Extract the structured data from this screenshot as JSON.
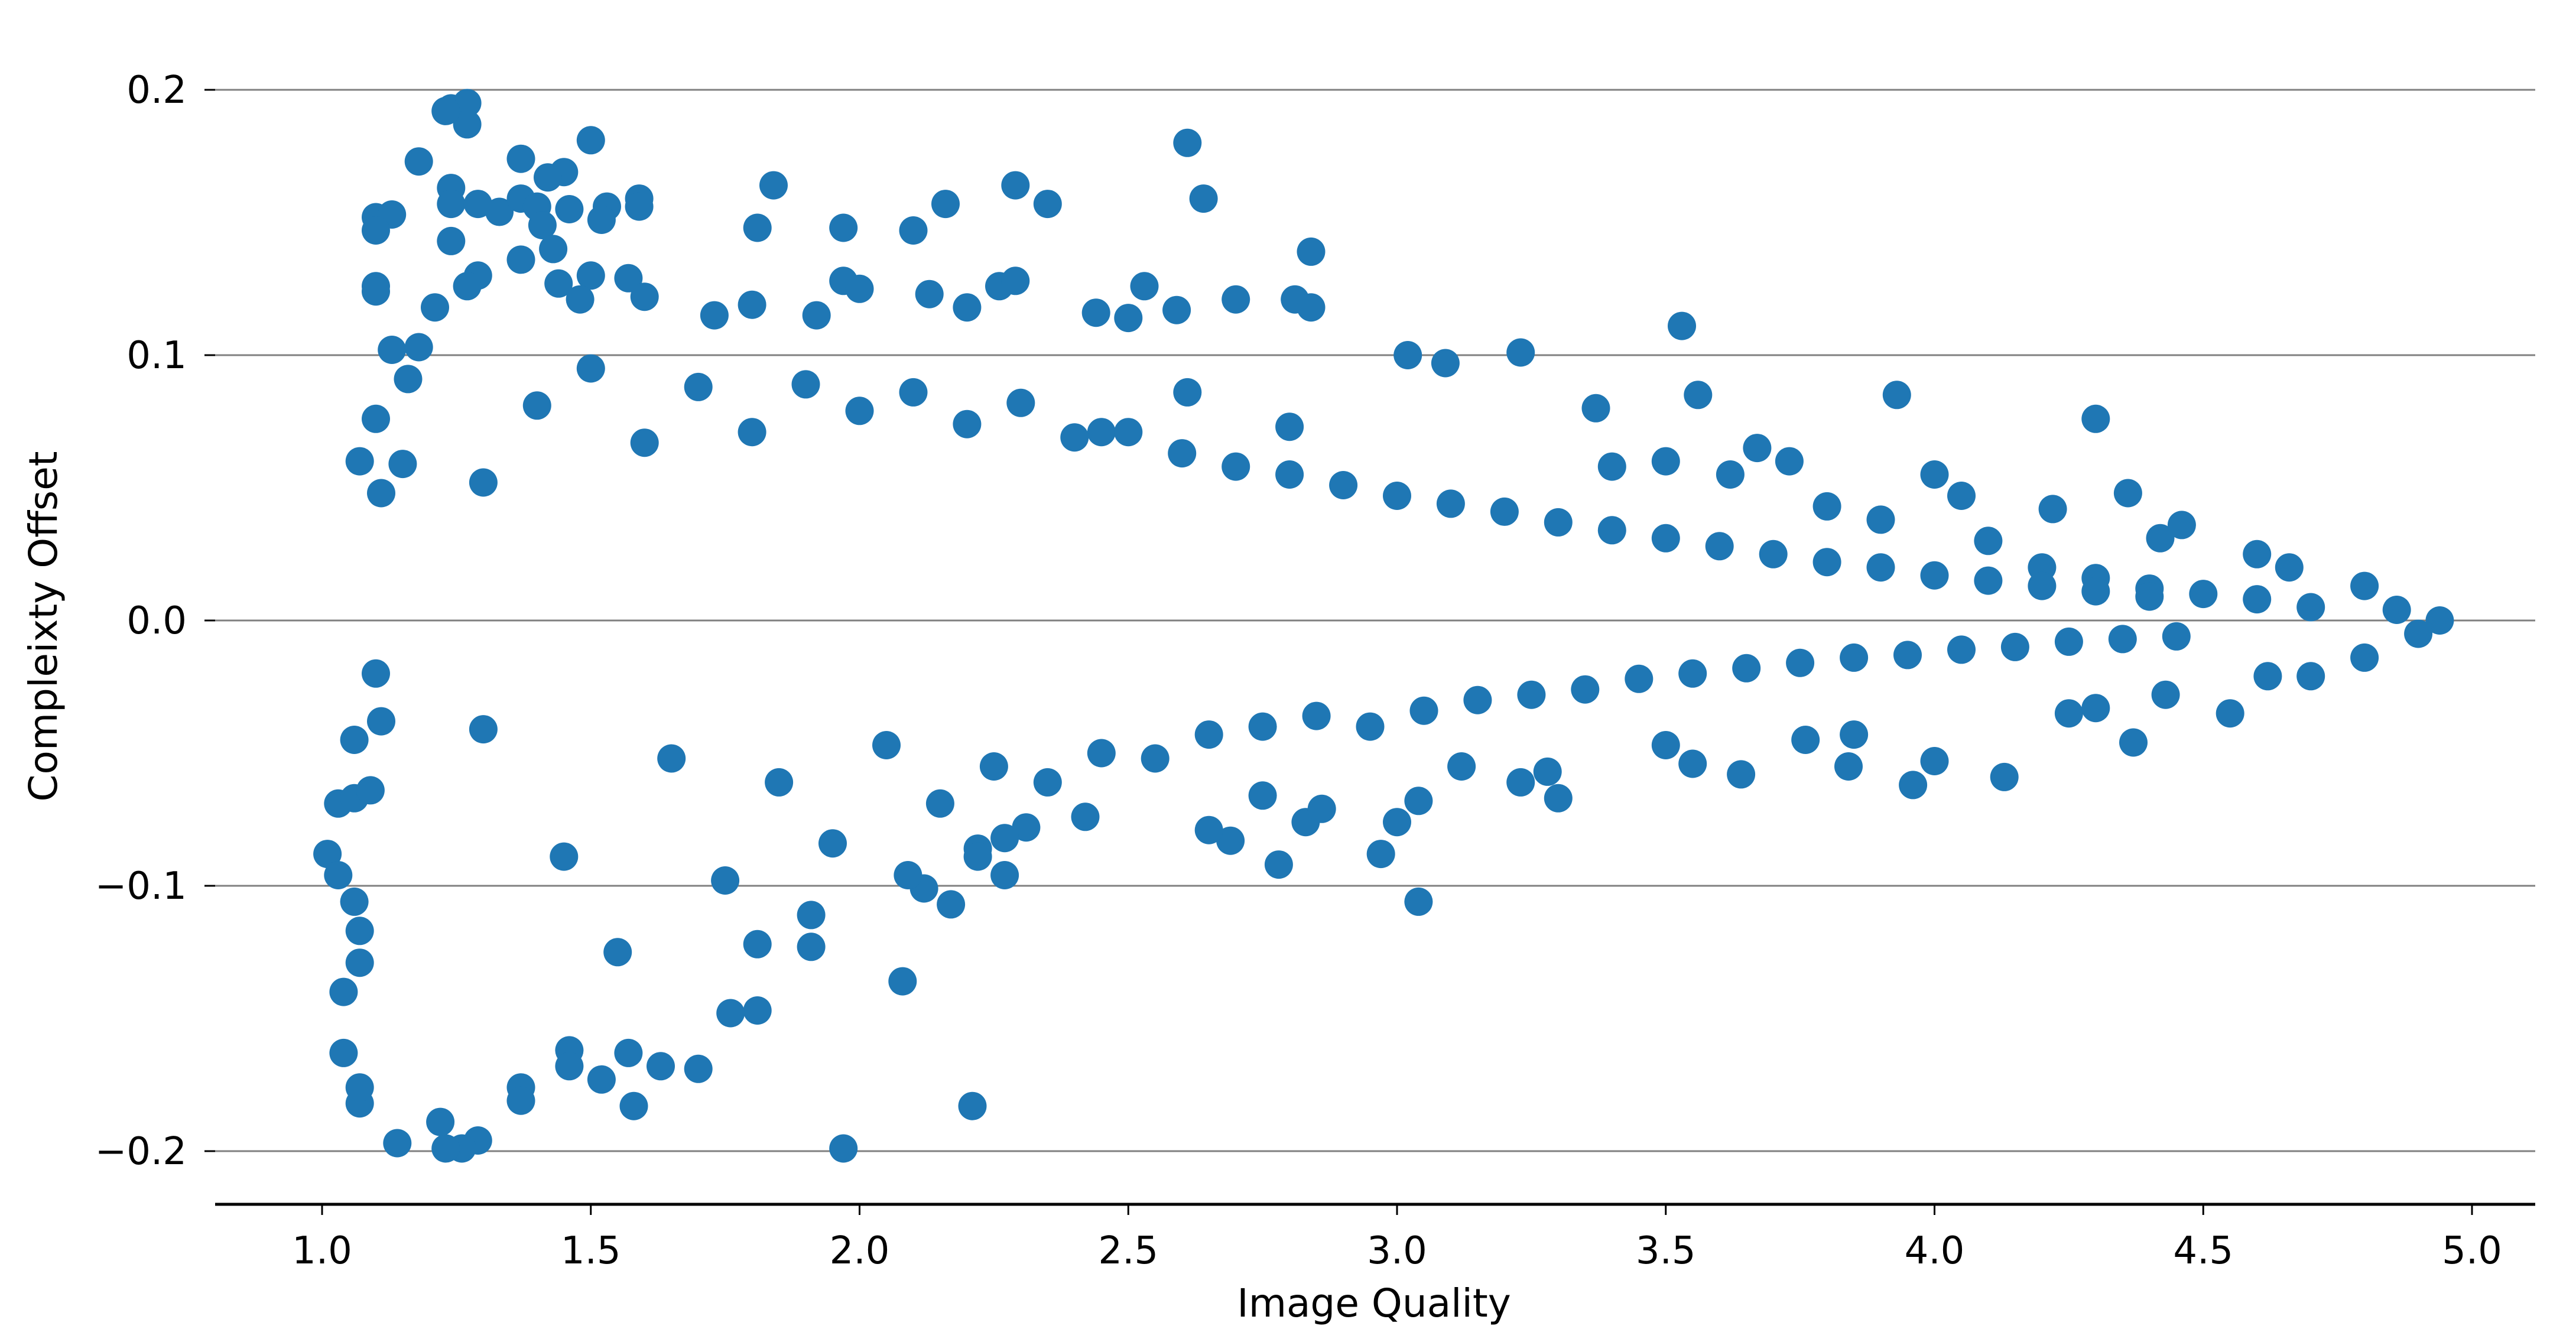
{
  "chart_data": {
    "type": "scatter",
    "title": "",
    "xlabel": "Image Quality",
    "ylabel": "Compleixty Offset",
    "xlim": [
      0.82,
      5.15
    ],
    "ylim": [
      -0.22,
      0.215
    ],
    "x_ticks": [
      1.0,
      1.5,
      2.0,
      2.5,
      3.0,
      3.5,
      4.0,
      4.5,
      5.0
    ],
    "x_tick_labels": [
      "1.0",
      "1.5",
      "2.0",
      "2.5",
      "3.0",
      "3.5",
      "4.0",
      "4.5",
      "5.0"
    ],
    "y_ticks": [
      -0.2,
      -0.1,
      0.0,
      0.1,
      0.2
    ],
    "y_tick_labels": [
      "−0.2",
      "−0.1",
      "0.0",
      "0.1",
      "0.2"
    ],
    "grid": "horizontal",
    "marker_color": "#1f77b4",
    "grid_color": "#808080",
    "series": [
      {
        "values": [
          [
            1.24,
            0.193
          ],
          [
            1.27,
            0.195
          ],
          [
            1.27,
            0.187
          ],
          [
            1.23,
            0.192
          ],
          [
            1.5,
            0.181
          ],
          [
            1.18,
            0.173
          ],
          [
            1.37,
            0.174
          ],
          [
            1.45,
            0.169
          ],
          [
            1.42,
            0.167
          ],
          [
            1.24,
            0.163
          ],
          [
            1.24,
            0.157
          ],
          [
            1.53,
            0.156
          ],
          [
            1.59,
            0.159
          ],
          [
            1.59,
            0.156
          ],
          [
            1.29,
            0.157
          ],
          [
            1.33,
            0.154
          ],
          [
            1.37,
            0.159
          ],
          [
            1.4,
            0.156
          ],
          [
            1.46,
            0.155
          ],
          [
            1.1,
            0.152
          ],
          [
            1.13,
            0.153
          ],
          [
            1.1,
            0.147
          ],
          [
            1.41,
            0.149
          ],
          [
            1.37,
            0.136
          ],
          [
            1.24,
            0.143
          ],
          [
            1.52,
            0.151
          ],
          [
            1.43,
            0.14
          ],
          [
            1.1,
            0.126
          ],
          [
            1.1,
            0.124
          ],
          [
            1.29,
            0.13
          ],
          [
            1.5,
            0.13
          ],
          [
            1.57,
            0.129
          ],
          [
            1.27,
            0.126
          ],
          [
            1.44,
            0.127
          ],
          [
            1.48,
            0.121
          ],
          [
            1.6,
            0.122
          ],
          [
            1.84,
            0.164
          ],
          [
            1.81,
            0.148
          ],
          [
            1.97,
            0.148
          ],
          [
            2.1,
            0.147
          ],
          [
            2.16,
            0.157
          ],
          [
            2.29,
            0.164
          ],
          [
            2.35,
            0.157
          ],
          [
            2.61,
            0.18
          ],
          [
            2.64,
            0.159
          ],
          [
            2.84,
            0.139
          ],
          [
            1.97,
            0.128
          ],
          [
            2.0,
            0.125
          ],
          [
            2.13,
            0.123
          ],
          [
            2.26,
            0.126
          ],
          [
            2.29,
            0.128
          ],
          [
            2.53,
            0.126
          ],
          [
            2.7,
            0.121
          ],
          [
            2.81,
            0.121
          ],
          [
            2.84,
            0.118
          ],
          [
            1.73,
            0.115
          ],
          [
            1.8,
            0.119
          ],
          [
            1.92,
            0.115
          ],
          [
            2.2,
            0.118
          ],
          [
            2.44,
            0.116
          ],
          [
            2.5,
            0.114
          ],
          [
            2.59,
            0.117
          ],
          [
            3.53,
            0.111
          ],
          [
            3.23,
            0.101
          ],
          [
            3.02,
            0.1
          ],
          [
            3.09,
            0.097
          ],
          [
            3.56,
            0.085
          ],
          [
            3.93,
            0.085
          ],
          [
            4.3,
            0.076
          ],
          [
            3.67,
            0.065
          ],
          [
            3.73,
            0.06
          ],
          [
            4.0,
            0.055
          ],
          [
            4.36,
            0.048
          ],
          [
            4.05,
            0.047
          ],
          [
            4.22,
            0.042
          ],
          [
            4.46,
            0.036
          ],
          [
            4.42,
            0.031
          ],
          [
            4.6,
            0.025
          ],
          [
            4.66,
            0.02
          ],
          [
            4.8,
            0.013
          ],
          [
            4.86,
            0.004
          ],
          [
            4.94,
            0.0
          ],
          [
            4.9,
            -0.005
          ],
          [
            4.8,
            -0.014
          ],
          [
            4.7,
            -0.021
          ],
          [
            4.62,
            -0.021
          ],
          [
            4.55,
            -0.035
          ],
          [
            4.37,
            -0.046
          ],
          [
            4.43,
            -0.028
          ],
          [
            4.25,
            -0.035
          ],
          [
            4.3,
            -0.033
          ],
          [
            4.13,
            -0.059
          ],
          [
            4.0,
            -0.053
          ],
          [
            3.96,
            -0.062
          ],
          [
            3.84,
            -0.055
          ],
          [
            3.85,
            -0.043
          ],
          [
            3.76,
            -0.045
          ],
          [
            3.64,
            -0.058
          ],
          [
            3.55,
            -0.054
          ],
          [
            3.5,
            -0.047
          ],
          [
            3.3,
            -0.067
          ],
          [
            3.28,
            -0.057
          ],
          [
            3.23,
            -0.061
          ],
          [
            3.12,
            -0.055
          ],
          [
            3.04,
            -0.106
          ],
          [
            2.97,
            -0.088
          ],
          [
            3.0,
            -0.076
          ],
          [
            3.04,
            -0.068
          ],
          [
            2.78,
            -0.092
          ],
          [
            2.83,
            -0.076
          ],
          [
            2.86,
            -0.071
          ],
          [
            2.69,
            -0.083
          ],
          [
            2.65,
            -0.079
          ],
          [
            2.75,
            -0.066
          ],
          [
            2.42,
            -0.074
          ],
          [
            2.31,
            -0.078
          ],
          [
            2.27,
            -0.082
          ],
          [
            2.27,
            -0.096
          ],
          [
            2.22,
            -0.086
          ],
          [
            2.22,
            -0.089
          ],
          [
            2.17,
            -0.107
          ],
          [
            2.12,
            -0.101
          ],
          [
            2.09,
            -0.096
          ],
          [
            2.08,
            -0.136
          ],
          [
            2.21,
            -0.183
          ],
          [
            1.97,
            -0.199
          ],
          [
            1.91,
            -0.123
          ],
          [
            1.91,
            -0.111
          ],
          [
            1.81,
            -0.122
          ],
          [
            1.81,
            -0.147
          ],
          [
            1.76,
            -0.148
          ],
          [
            1.7,
            -0.169
          ],
          [
            1.63,
            -0.168
          ],
          [
            1.57,
            -0.163
          ],
          [
            1.58,
            -0.183
          ],
          [
            1.52,
            -0.173
          ],
          [
            1.46,
            -0.162
          ],
          [
            1.46,
            -0.168
          ],
          [
            1.37,
            -0.176
          ],
          [
            1.37,
            -0.181
          ],
          [
            1.29,
            -0.196
          ],
          [
            1.26,
            -0.199
          ],
          [
            1.23,
            -0.199
          ],
          [
            1.22,
            -0.189
          ],
          [
            1.14,
            -0.197
          ],
          [
            1.07,
            -0.182
          ],
          [
            1.07,
            -0.176
          ],
          [
            1.04,
            -0.163
          ],
          [
            1.04,
            -0.14
          ],
          [
            1.07,
            -0.129
          ],
          [
            1.07,
            -0.117
          ],
          [
            1.06,
            -0.106
          ],
          [
            1.01,
            -0.088
          ],
          [
            1.03,
            -0.096
          ],
          [
            1.03,
            -0.069
          ],
          [
            1.06,
            -0.067
          ],
          [
            1.09,
            -0.064
          ],
          [
            1.06,
            -0.045
          ],
          [
            1.11,
            -0.038
          ],
          [
            1.1,
            -0.02
          ],
          [
            1.07,
            0.06
          ],
          [
            1.1,
            0.076
          ],
          [
            1.11,
            0.048
          ],
          [
            1.15,
            0.059
          ],
          [
            1.13,
            0.102
          ],
          [
            1.18,
            0.103
          ],
          [
            1.21,
            0.118
          ],
          [
            1.16,
            0.091
          ],
          [
            2.45,
            0.071
          ],
          [
            2.61,
            0.086
          ],
          [
            2.8,
            0.073
          ],
          [
            3.37,
            0.08
          ],
          [
            3.4,
            0.058
          ],
          [
            3.5,
            0.06
          ],
          [
            3.62,
            0.055
          ],
          [
            3.8,
            0.043
          ],
          [
            3.9,
            0.038
          ],
          [
            4.1,
            0.03
          ],
          [
            4.2,
            0.02
          ],
          [
            4.3,
            0.016
          ],
          [
            4.4,
            0.012
          ],
          [
            4.5,
            0.01
          ],
          [
            4.6,
            0.008
          ],
          [
            4.7,
            0.005
          ],
          [
            1.3,
            -0.041
          ],
          [
            1.45,
            -0.089
          ],
          [
            1.55,
            -0.125
          ],
          [
            1.65,
            -0.052
          ],
          [
            1.75,
            -0.098
          ],
          [
            1.85,
            -0.061
          ],
          [
            1.95,
            -0.084
          ],
          [
            2.05,
            -0.047
          ],
          [
            2.15,
            -0.069
          ],
          [
            2.25,
            -0.055
          ],
          [
            2.35,
            -0.061
          ],
          [
            2.45,
            -0.05
          ],
          [
            2.55,
            -0.052
          ],
          [
            2.65,
            -0.043
          ],
          [
            2.75,
            -0.04
          ],
          [
            2.85,
            -0.036
          ],
          [
            2.95,
            -0.04
          ],
          [
            3.05,
            -0.034
          ],
          [
            3.15,
            -0.03
          ],
          [
            3.25,
            -0.028
          ],
          [
            3.35,
            -0.026
          ],
          [
            3.45,
            -0.022
          ],
          [
            3.55,
            -0.02
          ],
          [
            3.65,
            -0.018
          ],
          [
            3.75,
            -0.016
          ],
          [
            3.85,
            -0.014
          ],
          [
            3.95,
            -0.013
          ],
          [
            4.05,
            -0.011
          ],
          [
            4.15,
            -0.01
          ],
          [
            4.25,
            -0.008
          ],
          [
            4.35,
            -0.007
          ],
          [
            4.45,
            -0.006
          ],
          [
            1.3,
            0.052
          ],
          [
            1.4,
            0.081
          ],
          [
            1.5,
            0.095
          ],
          [
            1.6,
            0.067
          ],
          [
            1.7,
            0.088
          ],
          [
            1.8,
            0.071
          ],
          [
            1.9,
            0.089
          ],
          [
            2.0,
            0.079
          ],
          [
            2.1,
            0.086
          ],
          [
            2.2,
            0.074
          ],
          [
            2.3,
            0.082
          ],
          [
            2.4,
            0.069
          ],
          [
            2.5,
            0.071
          ],
          [
            2.6,
            0.063
          ],
          [
            2.7,
            0.058
          ],
          [
            2.8,
            0.055
          ],
          [
            2.9,
            0.051
          ],
          [
            3.0,
            0.047
          ],
          [
            3.1,
            0.044
          ],
          [
            3.2,
            0.041
          ],
          [
            3.3,
            0.037
          ],
          [
            3.4,
            0.034
          ],
          [
            3.5,
            0.031
          ],
          [
            3.6,
            0.028
          ],
          [
            3.7,
            0.025
          ],
          [
            3.8,
            0.022
          ],
          [
            3.9,
            0.02
          ],
          [
            4.0,
            0.017
          ],
          [
            4.1,
            0.015
          ],
          [
            4.2,
            0.013
          ],
          [
            4.3,
            0.011
          ],
          [
            4.4,
            0.009
          ]
        ]
      }
    ]
  }
}
